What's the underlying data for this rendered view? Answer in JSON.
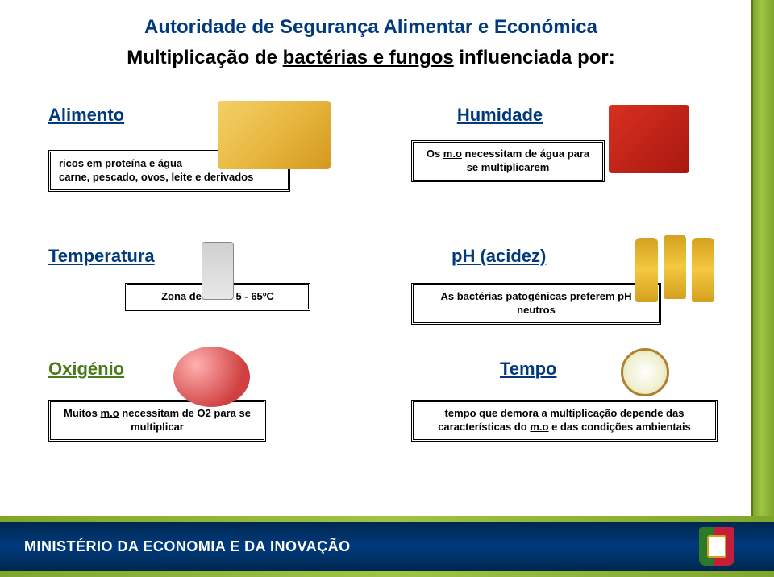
{
  "header": {
    "org_title": "Autoridade de Segurança Alimentar e Económica",
    "subtitle_prefix": "Multiplicação de ",
    "subtitle_underlined": "bactérias e fungos",
    "subtitle_suffix": " influenciada por:"
  },
  "alimento": {
    "title": "Alimento",
    "line1": "ricos em proteína e água",
    "line2": "carne, pescado, ovos, leite e derivados"
  },
  "humidade": {
    "title": "Humidade",
    "line1": "Os ",
    "line1_u": "m.o",
    "line1_rest": " necessitam de água para se multiplicarem"
  },
  "temperatura": {
    "title": "Temperatura",
    "box": "Zona de risco: 5 - 65ºC"
  },
  "ph": {
    "title": "pH (acidez)",
    "box": "As bactérias patogénicas preferem pH neutros"
  },
  "oxigenio": {
    "title": "Oxigénio",
    "box_prefix": "Muitos ",
    "box_u": "m.o",
    "box_rest": " necessitam de O2 para se multiplicar"
  },
  "tempo": {
    "title": "Tempo",
    "box_prefix": "tempo que demora a multiplicação depende das características do ",
    "box_u": "m.o",
    "box_rest": " e das condições ambientais"
  },
  "footer": {
    "ministry": "MINISTÉRIO DA ECONOMIA E DA INOVAÇÃO"
  },
  "colors": {
    "brand_blue": "#003a7d",
    "accent_green": "#9fc443",
    "dark_green": "#7fa52b"
  }
}
